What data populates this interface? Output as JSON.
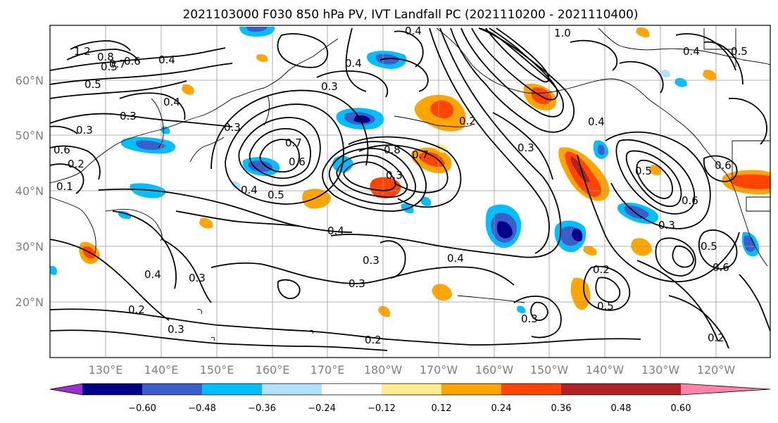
{
  "title": "2021103000 F030 850 hPa PV, IVT Landfall PC (2021110200 - 2021110400)",
  "lon_ticks": [
    "130°E",
    "140°E",
    "150°E",
    "160°E",
    "170°E",
    "180°W",
    "170°W",
    "160°W",
    "150°W",
    "140°W",
    "130°W",
    "120°W"
  ],
  "lat_ticks": [
    "20°N",
    "30°N",
    "40°N",
    "50°N",
    "60°N"
  ],
  "colorbar": {
    "tick_labels": [
      "−0.60",
      "−0.48",
      "−0.36",
      "−0.24",
      "−0.12",
      "0.12",
      "0.24",
      "0.36",
      "0.48",
      "0.60"
    ],
    "colors": [
      "#9932cc",
      "#00008b",
      "#3a5fcd",
      "#00bfff",
      "#b0e2ff",
      "#ffffff",
      "#ffec8b",
      "#ffa500",
      "#ff4500",
      "#b22222",
      "#ff82ab"
    ]
  },
  "contour_labels": [
    "1.2",
    "0.8",
    "0.6",
    "0.7",
    "0.5",
    "0.4",
    "0.4",
    "0.3",
    "0.3",
    "0.3",
    "0.1",
    "0.6",
    "0.2",
    "0.7",
    "0.6",
    "0.5",
    "0.4",
    "0.4",
    "0.8",
    "0.7",
    "0.3",
    "0.4",
    "0.3",
    "0.2",
    "0.3",
    "0.4",
    "0.3",
    "0.3",
    "0.4",
    "0.2",
    "0.4",
    "1.0",
    "0.2",
    "0.3",
    "0.5",
    "0.3",
    "0.5",
    "0.4",
    "0.5",
    "0.6",
    "0.3",
    "0.6",
    "0.5",
    "0.6",
    "0.2",
    "0.5",
    "0.3",
    "0.4",
    "0.2"
  ]
}
